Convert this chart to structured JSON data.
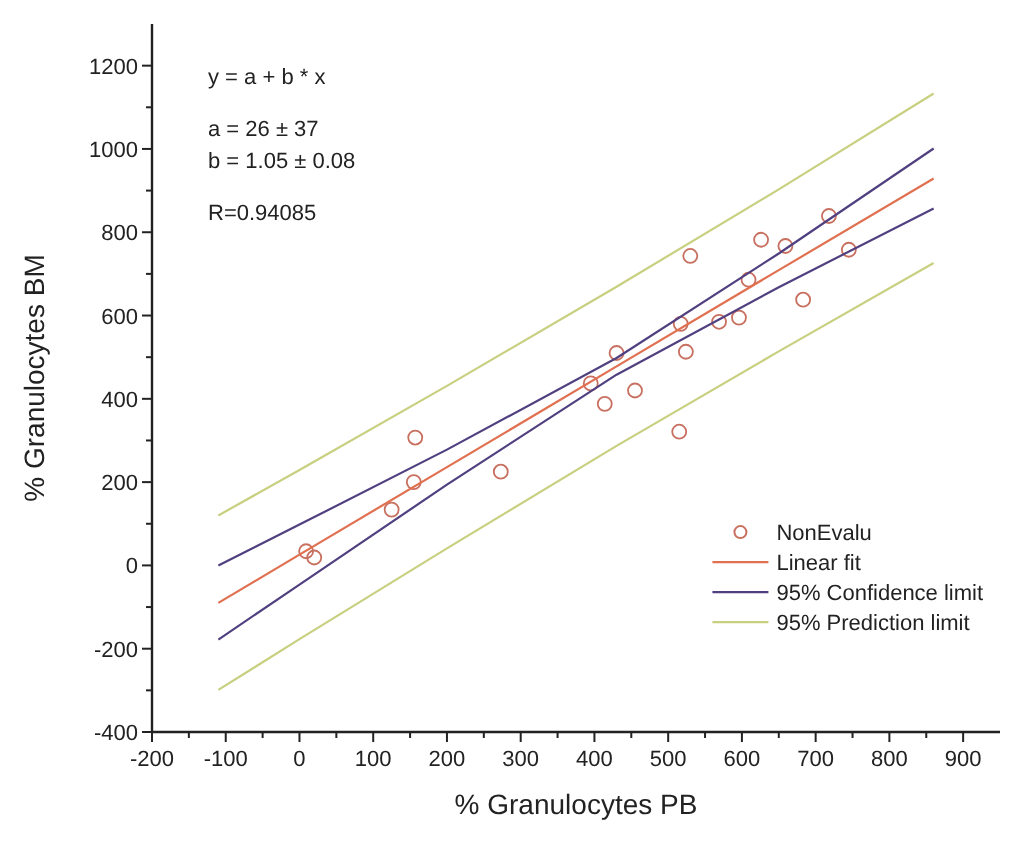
{
  "chart_data": {
    "type": "scatter",
    "xlabel": "% Granulocytes PB",
    "ylabel": "% Granulocytes BM",
    "xlim": [
      -200,
      950
    ],
    "ylim": [
      -400,
      1300
    ],
    "xticks": [
      -200,
      -100,
      0,
      100,
      200,
      300,
      400,
      500,
      600,
      700,
      800,
      900
    ],
    "yticks": [
      -400,
      -200,
      0,
      200,
      400,
      600,
      800,
      1000,
      1200
    ],
    "legend": "bottom right",
    "annotations": [
      "y = a + b * x",
      "a = 26 ± 37",
      "b = 1.05 ± 0.08",
      "R=0.94085"
    ],
    "series": [
      {
        "name": "NonEvalu",
        "marker": "circle",
        "color": "#c87060",
        "x": [
          9,
          20,
          157,
          155,
          125,
          273,
          395,
          414,
          515,
          530,
          626,
          659,
          718,
          745,
          517,
          524,
          569,
          596,
          609,
          683,
          430,
          455
        ],
        "values": [
          34,
          19,
          307,
          200,
          134,
          225,
          437,
          388,
          321,
          743,
          782,
          767,
          839,
          758,
          580,
          513,
          585,
          595,
          686,
          638,
          510,
          420
        ]
      },
      {
        "name": "Linear fit",
        "type": "line",
        "marker": "none",
        "color": "#e07050",
        "x": [
          -110,
          0,
          200,
          430,
          650,
          860
        ],
        "values": [
          -90,
          26,
          236,
          478,
          709,
          929
        ]
      },
      {
        "name": "95% Confidence limit",
        "type": "line",
        "marker": "none",
        "color": "#504080",
        "x": [
          -110,
          0,
          200,
          430,
          650,
          860
        ],
        "values": [
          0,
          98,
          278,
          498,
          749,
          1001
        ]
      },
      {
        "type": "line",
        "marker": "none",
        "color": "#504080",
        "x": [
          -110,
          0,
          200,
          430,
          650,
          860
        ],
        "values": [
          -178,
          -46,
          194,
          458,
          668,
          857
        ]
      },
      {
        "name": "95% Prediction limit",
        "type": "line",
        "marker": "none",
        "color": "#c8d080",
        "x": [
          -110,
          0,
          200,
          430,
          650,
          860
        ],
        "values": [
          120,
          229,
          431,
          669,
          903,
          1133
        ]
      },
      {
        "type": "line",
        "marker": "none",
        "color": "#c8d080",
        "x": [
          -110,
          0,
          200,
          430,
          650,
          860
        ],
        "values": [
          -299,
          -177,
          41,
          287,
          514,
          726
        ]
      }
    ]
  }
}
